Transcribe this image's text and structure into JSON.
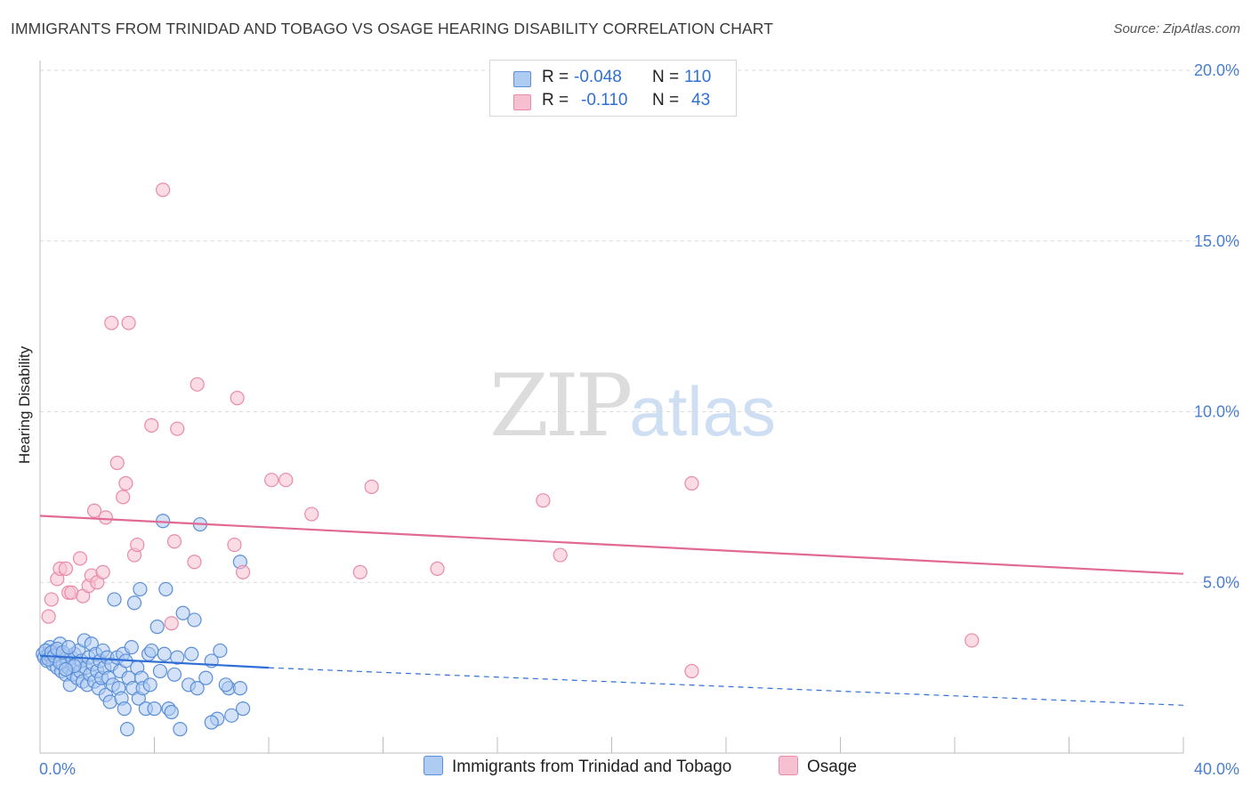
{
  "header": {
    "title": "IMMIGRANTS FROM TRINIDAD AND TOBAGO VS OSAGE HEARING DISABILITY CORRELATION CHART",
    "source": "Source: ZipAtlas.com"
  },
  "watermark": {
    "zip": "ZIP",
    "atlas": "atlas"
  },
  "legend": {
    "rows": [
      {
        "r_label": "R =",
        "r_value": "-0.048",
        "n_label": "N =",
        "n_value": "110",
        "color": "#aecbf2"
      },
      {
        "r_label": "R =",
        "r_value": "-0.110",
        "n_label": "N =",
        "n_value": "43",
        "color": "#f7c0d0"
      }
    ]
  },
  "bottom_legend": {
    "series1": "Immigrants from Trinidad and Tobago",
    "series2": "Osage"
  },
  "colors": {
    "blue_fill": "#aecbf2",
    "blue_stroke": "#5a8fd8",
    "blue_line": "#2f6fd6",
    "pink_fill": "#f7c0d0",
    "pink_stroke": "#e98aa7",
    "pink_line": "#e06a93",
    "tick_text": "#4a7fd0",
    "grid": "#d9d9d9"
  },
  "chart_data": {
    "type": "scatter",
    "title": "IMMIGRANTS FROM TRINIDAD AND TOBAGO VS OSAGE HEARING DISABILITY CORRELATION CHART",
    "xlabel": "",
    "ylabel": "Hearing Disability",
    "xlim": [
      0,
      40
    ],
    "ylim": [
      0,
      20
    ],
    "x_tick_labels": [
      "0.0%",
      "40.0%"
    ],
    "y_tick_labels": [
      "5.0%",
      "10.0%",
      "15.0%",
      "20.0%"
    ],
    "y_ticks": [
      5,
      10,
      15,
      20
    ],
    "grid": true,
    "legend_placement": "top-center",
    "series": [
      {
        "name": "Immigrants from Trinidad and Tobago",
        "R": -0.048,
        "N": 110,
        "trend": {
          "x": [
            0,
            8
          ],
          "y": [
            2.85,
            2.5
          ],
          "dashed_to": [
            40,
            1.4
          ]
        },
        "points": [
          [
            0.1,
            2.9
          ],
          [
            0.15,
            2.8
          ],
          [
            0.2,
            3.0
          ],
          [
            0.25,
            2.7
          ],
          [
            0.3,
            2.9
          ],
          [
            0.35,
            3.1
          ],
          [
            0.4,
            2.8
          ],
          [
            0.45,
            2.6
          ],
          [
            0.5,
            3.0
          ],
          [
            0.55,
            2.75
          ],
          [
            0.6,
            2.5
          ],
          [
            0.65,
            2.9
          ],
          [
            0.7,
            3.2
          ],
          [
            0.75,
            2.4
          ],
          [
            0.8,
            2.6
          ],
          [
            0.85,
            2.85
          ],
          [
            0.9,
            2.3
          ],
          [
            0.95,
            2.7
          ],
          [
            1.0,
            2.5
          ],
          [
            1.05,
            2.0
          ],
          [
            1.1,
            2.8
          ],
          [
            1.15,
            2.3
          ],
          [
            1.2,
            2.9
          ],
          [
            1.25,
            2.6
          ],
          [
            1.3,
            2.2
          ],
          [
            1.35,
            3.0
          ],
          [
            1.4,
            2.4
          ],
          [
            1.45,
            2.7
          ],
          [
            1.5,
            2.1
          ],
          [
            1.55,
            3.3
          ],
          [
            1.6,
            2.5
          ],
          [
            1.65,
            2.0
          ],
          [
            1.7,
            2.8
          ],
          [
            1.75,
            2.3
          ],
          [
            1.8,
            3.2
          ],
          [
            1.85,
            2.6
          ],
          [
            1.9,
            2.1
          ],
          [
            1.95,
            2.9
          ],
          [
            2.0,
            2.4
          ],
          [
            2.05,
            1.9
          ],
          [
            2.1,
            2.7
          ],
          [
            2.15,
            2.2
          ],
          [
            2.2,
            3.0
          ],
          [
            2.25,
            2.5
          ],
          [
            2.3,
            1.7
          ],
          [
            2.35,
            2.8
          ],
          [
            2.4,
            2.2
          ],
          [
            2.45,
            1.5
          ],
          [
            2.5,
            2.6
          ],
          [
            2.55,
            2.0
          ],
          [
            2.6,
            4.5
          ],
          [
            2.7,
            2.8
          ],
          [
            2.75,
            1.9
          ],
          [
            2.8,
            2.4
          ],
          [
            2.85,
            1.6
          ],
          [
            2.9,
            2.9
          ],
          [
            2.95,
            1.3
          ],
          [
            3.0,
            2.7
          ],
          [
            3.05,
            0.7
          ],
          [
            3.1,
            2.2
          ],
          [
            3.2,
            3.1
          ],
          [
            3.25,
            1.9
          ],
          [
            3.3,
            4.4
          ],
          [
            3.4,
            2.5
          ],
          [
            3.45,
            1.6
          ],
          [
            3.5,
            4.8
          ],
          [
            3.55,
            2.2
          ],
          [
            3.6,
            1.9
          ],
          [
            3.7,
            1.3
          ],
          [
            3.8,
            2.9
          ],
          [
            3.85,
            2.0
          ],
          [
            3.9,
            3.0
          ],
          [
            4.0,
            1.3
          ],
          [
            4.1,
            3.7
          ],
          [
            4.2,
            2.4
          ],
          [
            4.3,
            6.8
          ],
          [
            4.35,
            2.9
          ],
          [
            4.4,
            4.8
          ],
          [
            4.5,
            1.3
          ],
          [
            4.6,
            1.2
          ],
          [
            4.7,
            2.3
          ],
          [
            4.8,
            2.8
          ],
          [
            4.9,
            0.7
          ],
          [
            5.0,
            4.1
          ],
          [
            5.2,
            2.0
          ],
          [
            5.3,
            2.9
          ],
          [
            5.4,
            3.9
          ],
          [
            5.5,
            1.9
          ],
          [
            5.6,
            6.7
          ],
          [
            5.8,
            2.2
          ],
          [
            6.0,
            2.7
          ],
          [
            6.2,
            1.0
          ],
          [
            6.3,
            3.0
          ],
          [
            6.6,
            1.9
          ],
          [
            6.7,
            1.1
          ],
          [
            7.0,
            5.6
          ],
          [
            6.0,
            0.9
          ],
          [
            6.5,
            2.0
          ],
          [
            0.2,
            3.0
          ],
          [
            0.3,
            2.75
          ],
          [
            0.4,
            2.95
          ],
          [
            0.5,
            2.85
          ],
          [
            0.6,
            3.05
          ],
          [
            0.7,
            2.65
          ],
          [
            0.8,
            2.95
          ],
          [
            1.0,
            3.1
          ],
          [
            1.2,
            2.55
          ],
          [
            0.9,
            2.45
          ],
          [
            7.0,
            1.9
          ],
          [
            7.1,
            1.3
          ]
        ]
      },
      {
        "name": "Osage",
        "R": -0.11,
        "N": 43,
        "trend": {
          "x": [
            0,
            40
          ],
          "y": [
            6.95,
            5.25
          ]
        },
        "points": [
          [
            0.3,
            4.0
          ],
          [
            0.4,
            4.5
          ],
          [
            0.6,
            5.1
          ],
          [
            0.7,
            5.4
          ],
          [
            0.9,
            5.4
          ],
          [
            1.0,
            4.7
          ],
          [
            1.1,
            4.7
          ],
          [
            1.4,
            5.7
          ],
          [
            1.5,
            4.6
          ],
          [
            1.7,
            4.9
          ],
          [
            1.8,
            5.2
          ],
          [
            1.9,
            7.1
          ],
          [
            2.0,
            5.0
          ],
          [
            2.2,
            5.3
          ],
          [
            2.3,
            6.9
          ],
          [
            2.5,
            12.6
          ],
          [
            2.7,
            8.5
          ],
          [
            2.9,
            7.5
          ],
          [
            3.1,
            12.6
          ],
          [
            3.3,
            5.8
          ],
          [
            3.4,
            6.1
          ],
          [
            3.9,
            9.6
          ],
          [
            4.3,
            16.5
          ],
          [
            4.7,
            6.2
          ],
          [
            4.8,
            9.5
          ],
          [
            5.4,
            5.6
          ],
          [
            5.5,
            10.8
          ],
          [
            6.8,
            6.1
          ],
          [
            6.9,
            10.4
          ],
          [
            7.1,
            5.3
          ],
          [
            8.1,
            8.0
          ],
          [
            8.6,
            8.0
          ],
          [
            9.5,
            7.0
          ],
          [
            11.2,
            5.3
          ],
          [
            11.6,
            7.8
          ],
          [
            13.9,
            5.4
          ],
          [
            17.6,
            7.4
          ],
          [
            18.2,
            5.8
          ],
          [
            22.8,
            2.4
          ],
          [
            22.8,
            7.9
          ],
          [
            32.6,
            3.3
          ],
          [
            3.0,
            7.9
          ],
          [
            4.6,
            3.8
          ]
        ]
      }
    ]
  }
}
